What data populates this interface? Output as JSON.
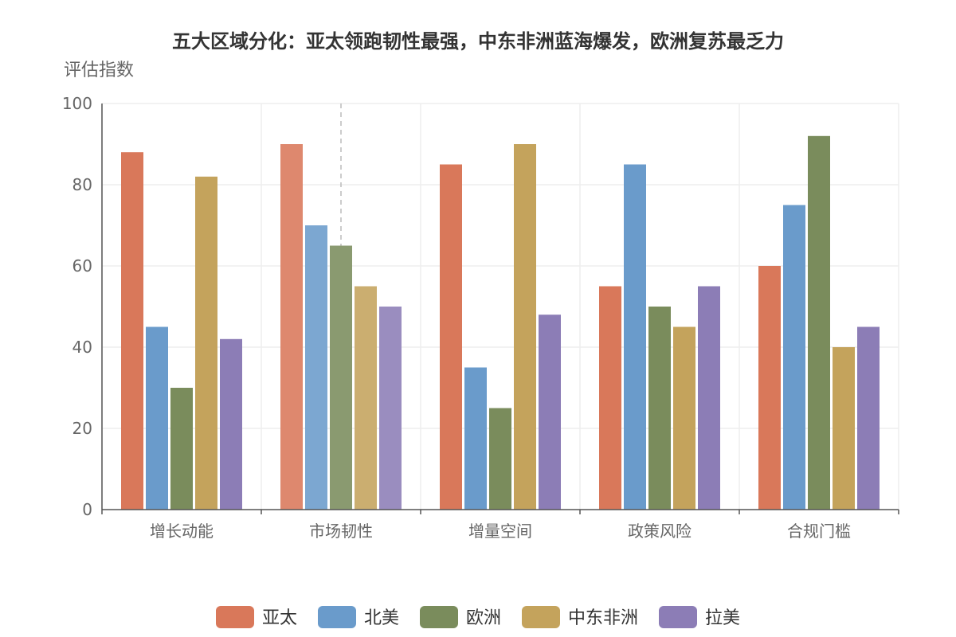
{
  "chart_data": {
    "type": "bar",
    "title": "五大区域分化：亚太领跑韧性最强，中东非洲蓝海爆发，欧洲复苏最乏力",
    "ylabel": "评估指数",
    "xlabel": "",
    "ylim": [
      0,
      100
    ],
    "yticks": [
      0,
      20,
      40,
      60,
      80,
      100
    ],
    "categories": [
      "增长动能",
      "市场韧性",
      "增量空间",
      "政策风险",
      "合规门槛"
    ],
    "series": [
      {
        "name": "亚太",
        "color": "#d9785a",
        "values": [
          88,
          90,
          85,
          55,
          60
        ]
      },
      {
        "name": "北美",
        "color": "#6a9bcb",
        "values": [
          45,
          70,
          35,
          85,
          75
        ]
      },
      {
        "name": "欧洲",
        "color": "#7a8c5c",
        "values": [
          30,
          65,
          25,
          50,
          92
        ]
      },
      {
        "name": "中东非洲",
        "color": "#c4a35c",
        "values": [
          82,
          55,
          90,
          45,
          40
        ]
      },
      {
        "name": "拉美",
        "color": "#8c7db6",
        "values": [
          42,
          50,
          48,
          55,
          45
        ]
      }
    ],
    "grid": true,
    "legend_position": "bottom",
    "hover_indicator_category": "市场韧性"
  }
}
